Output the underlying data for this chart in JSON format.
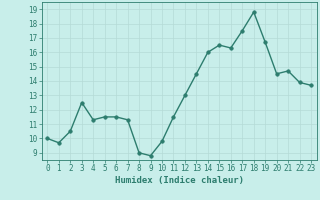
{
  "x": [
    0,
    1,
    2,
    3,
    4,
    5,
    6,
    7,
    8,
    9,
    10,
    11,
    12,
    13,
    14,
    15,
    16,
    17,
    18,
    19,
    20,
    21,
    22,
    23
  ],
  "y": [
    10.0,
    9.7,
    10.5,
    12.5,
    11.3,
    11.5,
    11.5,
    11.3,
    9.0,
    8.8,
    9.8,
    11.5,
    13.0,
    14.5,
    16.0,
    16.5,
    16.3,
    17.5,
    18.8,
    16.7,
    14.5,
    14.7,
    13.9,
    13.7
  ],
  "line_color": "#2d7d6e",
  "marker_color": "#2d7d6e",
  "bg_color": "#c8eeea",
  "grid_color": "#b5dbd6",
  "xlabel": "Humidex (Indice chaleur)",
  "xlim": [
    -0.5,
    23.5
  ],
  "ylim": [
    8.5,
    19.5
  ],
  "yticks": [
    9,
    10,
    11,
    12,
    13,
    14,
    15,
    16,
    17,
    18,
    19
  ],
  "xticks": [
    0,
    1,
    2,
    3,
    4,
    5,
    6,
    7,
    8,
    9,
    10,
    11,
    12,
    13,
    14,
    15,
    16,
    17,
    18,
    19,
    20,
    21,
    22,
    23
  ],
  "label_color": "#2d7d6e",
  "tick_fontsize": 5.5,
  "xlabel_fontsize": 6.5,
  "linewidth": 1.0,
  "markersize": 2.5
}
